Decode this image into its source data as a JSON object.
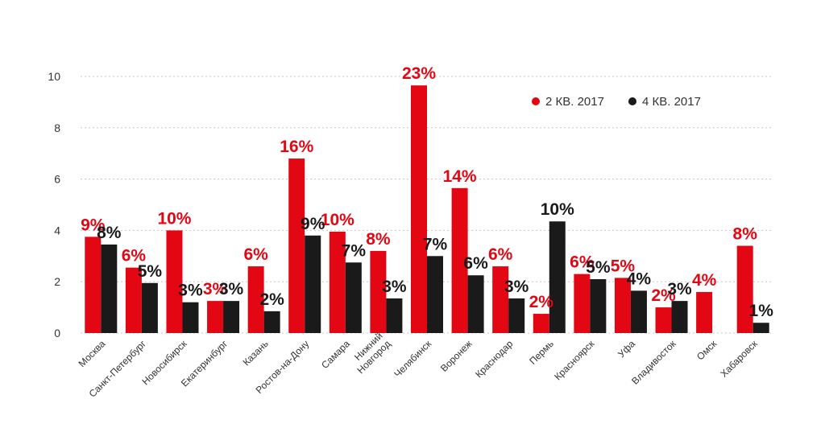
{
  "chart_data": {
    "type": "bar",
    "title": "",
    "xlabel": "",
    "ylabel": "",
    "ylim": [
      0,
      10
    ],
    "yticks": [
      "0",
      "2",
      "4",
      "6",
      "8",
      "10"
    ],
    "grid": true,
    "legend_position": "top-right",
    "categories": [
      [
        "Москва"
      ],
      [
        "Санкт-Петербург"
      ],
      [
        "Новосибирск"
      ],
      [
        "Екатеринбург"
      ],
      [
        "Казань"
      ],
      [
        "Ростов-на-Дону"
      ],
      [
        "Самара"
      ],
      [
        "Нижний",
        "Новгород"
      ],
      [
        "Челябинск"
      ],
      [
        "Воронеж"
      ],
      [
        "Краснодар"
      ],
      [
        "Пермь"
      ],
      [
        "Красноярск"
      ],
      [
        "Уфа"
      ],
      [
        "Владивосток"
      ],
      [
        "Омск"
      ],
      [
        "Хабаровск"
      ]
    ],
    "series": [
      {
        "name": "2 КВ. 2017",
        "color": "#e30613",
        "values": [
          3.75,
          2.55,
          4.0,
          1.25,
          2.6,
          6.8,
          3.95,
          3.2,
          9.65,
          5.65,
          2.6,
          0.75,
          2.3,
          2.15,
          1.0,
          1.6,
          3.4
        ],
        "labels": [
          "9%",
          "6%",
          "10%",
          "3%",
          "6%",
          "16%",
          "10%",
          "8%",
          "23%",
          "14%",
          "6%",
          "2%",
          "6%",
          "5%",
          "2%",
          "4%",
          "8%"
        ]
      },
      {
        "name": "4 КВ. 2017",
        "color": "#1a1a1a",
        "values": [
          3.45,
          1.95,
          1.2,
          1.25,
          0.85,
          3.8,
          2.75,
          1.35,
          3.0,
          2.25,
          1.35,
          4.35,
          2.1,
          1.65,
          1.25,
          0,
          0.4
        ],
        "labels": [
          "8%",
          "5%",
          "3%",
          "3%",
          "2%",
          "9%",
          "7%",
          "3%",
          "7%",
          "6%",
          "3%",
          "10%",
          "5%",
          "4%",
          "3%",
          "",
          "1%"
        ]
      }
    ]
  }
}
